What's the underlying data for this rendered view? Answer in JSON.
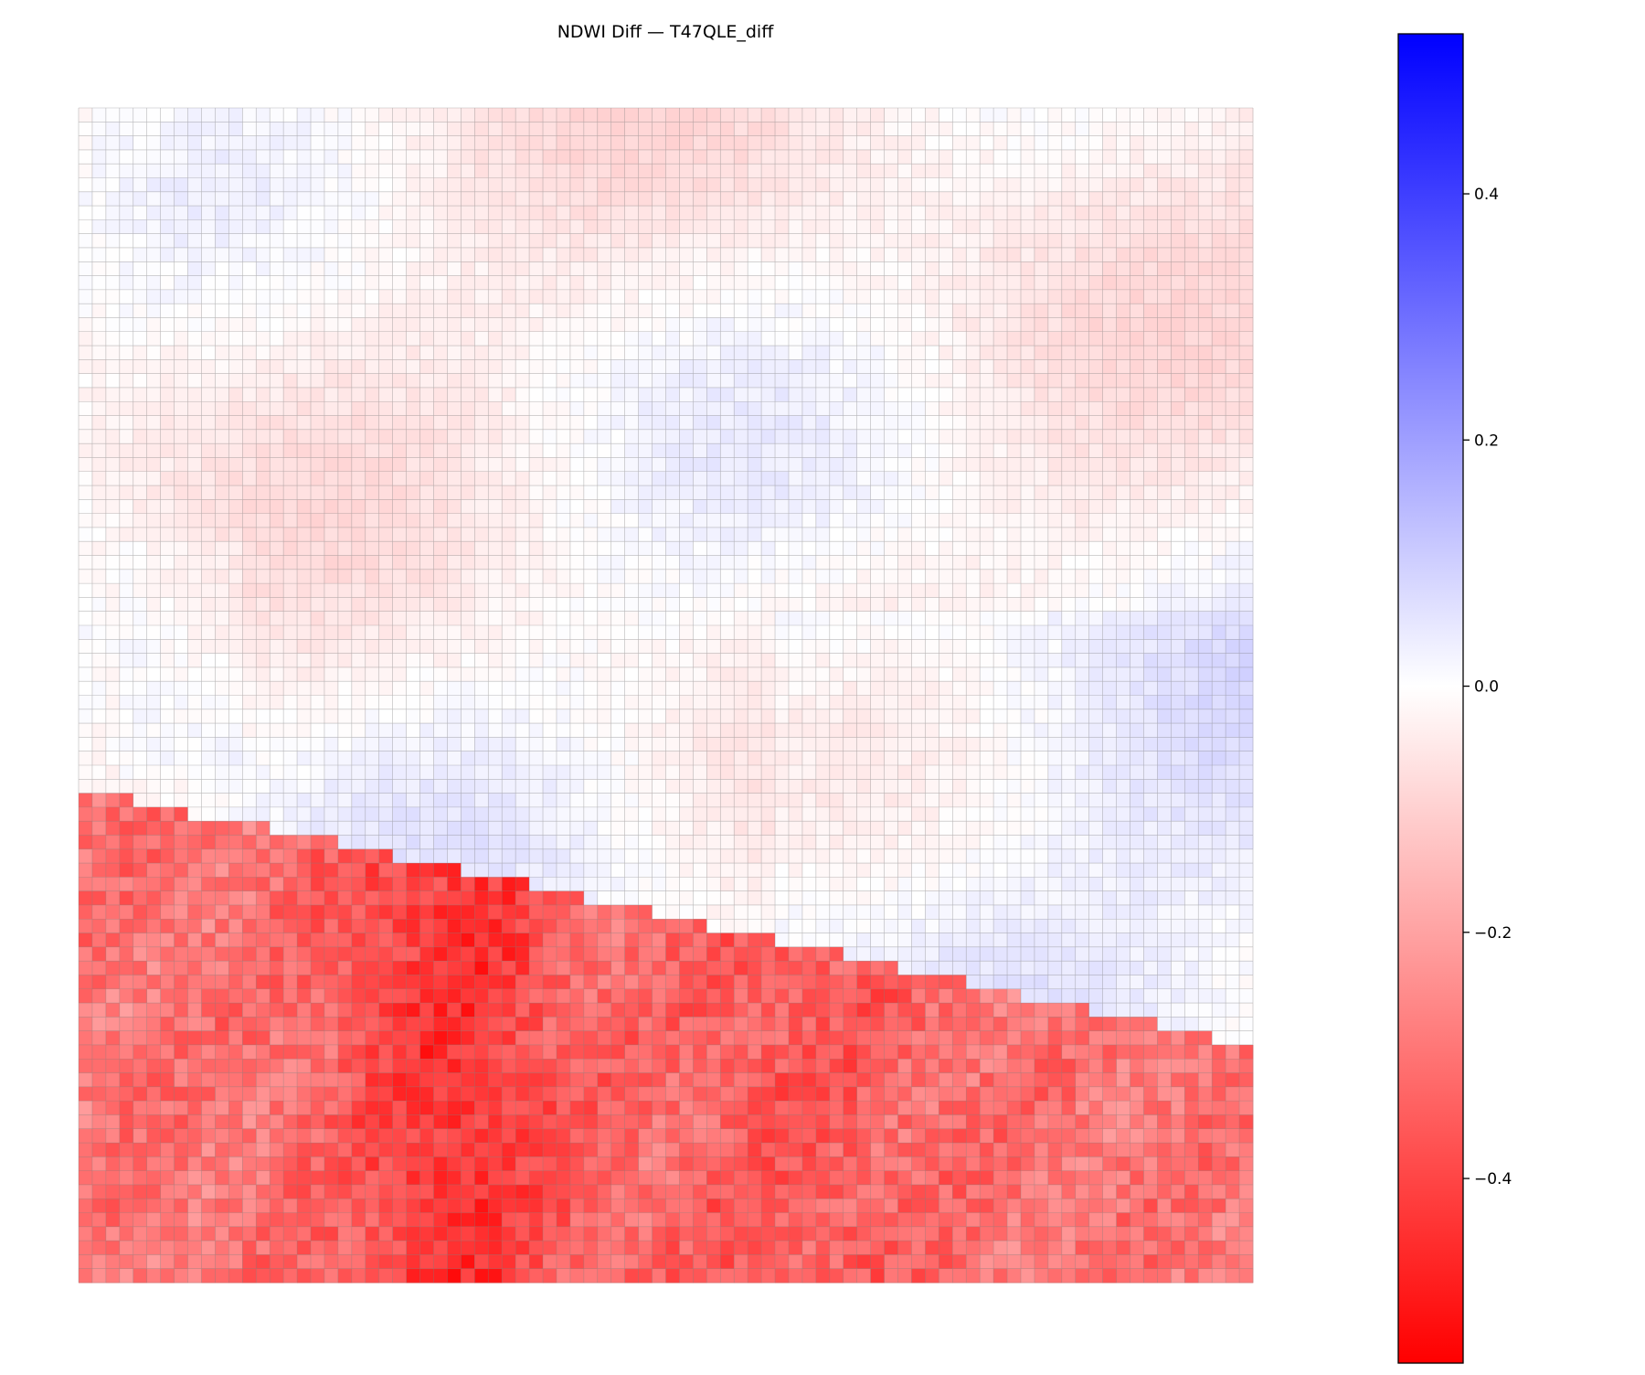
{
  "chart_data": {
    "type": "heatmap",
    "title": "NDWI Diff — T47QLE_diff",
    "grid": true,
    "grid_color": "#7f7f7f",
    "colormap": "bwr_r",
    "colormap_stops": [
      {
        "value": -0.55,
        "color": "#ff0000"
      },
      {
        "value": 0.0,
        "color": "#ffffff"
      },
      {
        "value": 0.53,
        "color": "#0000ff"
      }
    ],
    "rows": 84,
    "cols": 86,
    "colorbar": {
      "placement": "right",
      "range": [
        -0.55,
        0.53
      ],
      "ticks": [
        0.4,
        0.2,
        0.0,
        -0.2,
        -0.4
      ],
      "tick_labels": [
        "0.4",
        "0.2",
        "0.0",
        "−0.2",
        "−0.4"
      ]
    },
    "value_summary": {
      "upper_region_range": [
        -0.08,
        0.14
      ],
      "lower_region_range": [
        -0.55,
        -0.15
      ],
      "boundary": "diagonal, from left edge to right edge, descending toward the right"
    }
  }
}
